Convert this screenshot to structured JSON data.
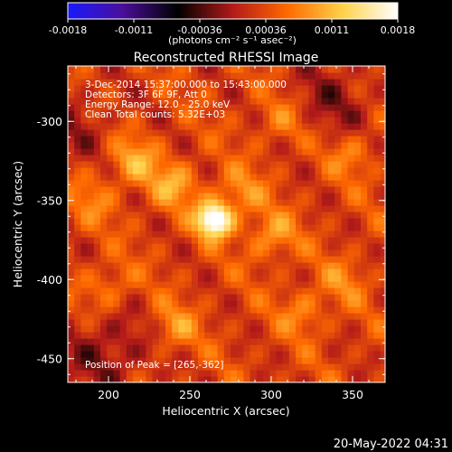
{
  "chart_data": {
    "type": "heatmap",
    "title": "Reconstructed RHESSI Image",
    "xlabel": "Heliocentric X (arcsec)",
    "ylabel": "Heliocentric Y (arcsec)",
    "xlim": [
      175,
      370
    ],
    "ylim": [
      -465,
      -265
    ],
    "x_ticks": [
      200,
      250,
      300,
      350
    ],
    "y_ticks": [
      -300,
      -350,
      -400,
      -450
    ],
    "colorbar": {
      "min": -0.0018,
      "max": 0.0018,
      "ticks": [
        "-0.0018",
        "-0.0011",
        "-0.00036",
        "0.00036",
        "0.0011",
        "0.0018"
      ],
      "label": "(photons cm⁻² s⁻¹ asec⁻²)",
      "colors": [
        "#1a1aff",
        "#4a0f9a",
        "#000000",
        "#b31a1a",
        "#ff6a00",
        "#ffd24a",
        "#ffffff"
      ]
    },
    "annotations": [
      "3-Dec-2014 15:37:00.000 to 15:43:00.000",
      "Detectors: 3F 6F 9F, Att 0",
      "Energy Range: 12.0 - 25.0 keV",
      "Clean    Total counts: 5.32E+03"
    ],
    "peak_label": "Position of Peak = [265,-362]",
    "peak": {
      "x": 265,
      "y": -362,
      "value": 0.0018
    },
    "sources": [
      {
        "x": 265,
        "y": -362,
        "value": 0.0018
      },
      {
        "x": 215,
        "y": -325,
        "value": 0.0009
      },
      {
        "x": 240,
        "y": -340,
        "value": 0.00085
      },
      {
        "x": 300,
        "y": -372,
        "value": 0.0008
      },
      {
        "x": 280,
        "y": -345,
        "value": 0.0007
      },
      {
        "x": 240,
        "y": -430,
        "value": 0.0007
      },
      {
        "x": 350,
        "y": -320,
        "value": 0.0006
      },
      {
        "x": 200,
        "y": -405,
        "value": 0.0006
      },
      {
        "x": 320,
        "y": -420,
        "value": 0.0006
      },
      {
        "x": 345,
        "y": -400,
        "value": 0.0005
      },
      {
        "x": 305,
        "y": -300,
        "value": 0.0005
      },
      {
        "x": 190,
        "y": -350,
        "value": 0.0005
      }
    ],
    "negative_regions": [
      {
        "x": 200,
        "y": -445,
        "value": -0.0005
      },
      {
        "x": 340,
        "y": -285,
        "value": -0.0004
      },
      {
        "x": 180,
        "y": -300,
        "value": -0.0003
      }
    ]
  },
  "timestamp": "20-May-2022 04:31"
}
